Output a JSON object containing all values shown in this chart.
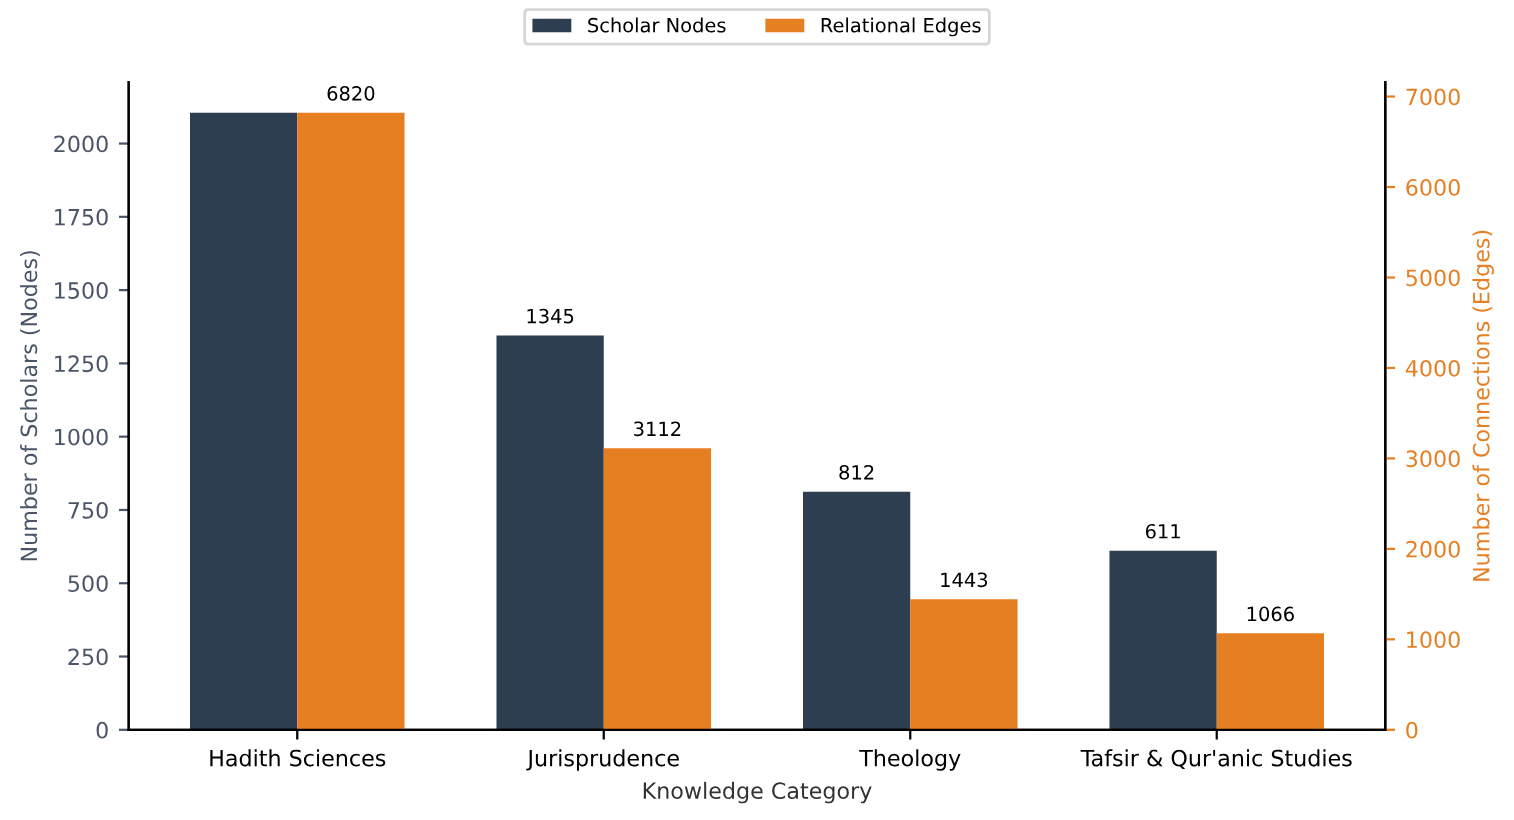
{
  "chart_data": {
    "type": "bar",
    "xlabel": "Knowledge Category",
    "ylabel": "Number of Scholars (Nodes)",
    "y2label": "Number of Connections (Edges)",
    "categories": [
      "Hadith Sciences",
      "Jurisprudence",
      "Theology",
      "Tafsir & Qur'anic Studies"
    ],
    "series": [
      {
        "name": "Scholar Nodes",
        "color": "#2c3e50",
        "values": [
          2105,
          1345,
          812,
          611
        ],
        "value_labels": [
          null,
          "1345",
          "812",
          "611"
        ]
      },
      {
        "name": "Relational Edges",
        "color": "#e67e22",
        "axis": "y2",
        "values": [
          6820,
          3112,
          1443,
          1066
        ],
        "value_labels": [
          "6820",
          "3112",
          "1443",
          "1066"
        ]
      }
    ],
    "ylim": [
      0,
      2210
    ],
    "yticks": [
      0,
      250,
      500,
      750,
      1000,
      1250,
      1500,
      1750,
      2000
    ],
    "y2lim": [
      0,
      7161
    ],
    "y2ticks": [
      0,
      1000,
      2000,
      3000,
      4000,
      5000,
      6000,
      7000
    ],
    "legend": "top",
    "grid": false
  }
}
